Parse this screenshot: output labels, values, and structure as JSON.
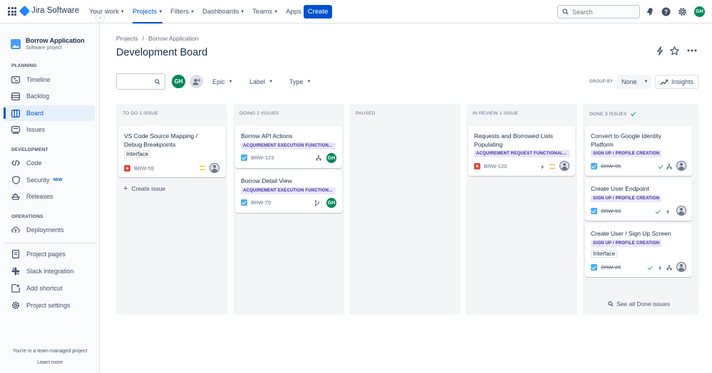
{
  "topnav": {
    "logo_text": "Jira Software",
    "items": [
      {
        "label": "Your work"
      },
      {
        "label": "Projects"
      },
      {
        "label": "Filters"
      },
      {
        "label": "Dashboards"
      },
      {
        "label": "Teams"
      },
      {
        "label": "Apps"
      }
    ],
    "create_label": "Create",
    "search_placeholder": "Search",
    "user_initials": "GH"
  },
  "sidebar": {
    "project_name": "Borrow Application",
    "project_type": "Software project",
    "sections": {
      "planning": "PLANNING",
      "development": "DEVELOPMENT",
      "operations": "OPERATIONS"
    },
    "planning_items": [
      {
        "label": "Timeline"
      },
      {
        "label": "Backlog"
      },
      {
        "label": "Board"
      },
      {
        "label": "Issues"
      }
    ],
    "development_items": [
      {
        "label": "Code"
      },
      {
        "label": "Security",
        "badge": "NEW"
      },
      {
        "label": "Releases"
      }
    ],
    "operations_items": [
      {
        "label": "Deployments"
      }
    ],
    "extra_items": [
      {
        "label": "Project pages"
      },
      {
        "label": "Slack integration"
      },
      {
        "label": "Add shortcut"
      },
      {
        "label": "Project settings"
      }
    ],
    "footer_text": "You're in a team-managed project",
    "learn_more": "Learn more"
  },
  "header": {
    "breadcrumb": [
      "Projects",
      "/",
      "Borrow Application"
    ],
    "title": "Development Board"
  },
  "filters": {
    "avatar_initials": "GH",
    "epic": "Epic",
    "label": "Label",
    "type": "Type",
    "group_by_label": "GROUP BY",
    "group_by_value": "None",
    "insights": "Insights"
  },
  "columns": [
    {
      "title": "TO DO 1 ISSUE",
      "cards": [
        {
          "title_lines": [
            "VS Code Source Mapping /",
            "Debug Breakpoints"
          ],
          "label": "Interface",
          "key": "BRW-59"
        }
      ],
      "create_issue": "Create issue"
    },
    {
      "title": "DOING 2 ISSUES",
      "cards": [
        {
          "title": "Borrow API Actions",
          "epic": "ACQUIREMENT EXECUTION FUNCTION...",
          "key": "BRW-123",
          "assignee": "GH"
        },
        {
          "title": "Borrow Detail View",
          "epic": "ACQUIREMENT EXECUTION FUNCTION...",
          "key": "BRW-79",
          "assignee": "GH"
        }
      ]
    },
    {
      "title": "PAUSED",
      "cards": []
    },
    {
      "title": "IN REVIEW 1 ISSUE",
      "cards": [
        {
          "title_lines": [
            "Requests and Borrowed Lists",
            "Populating"
          ],
          "epic": "ACQUIREMENT REQUEST FUNCTIONAL...",
          "key": "BRW-120"
        }
      ]
    },
    {
      "title": "DONE 3 ISSUES",
      "cards": [
        {
          "title_lines": [
            "Convert to Google Identity",
            "Platform"
          ],
          "epic": "SIGN UP / PROFILE CREATION",
          "key": "BRW-95"
        },
        {
          "title": "Create User Endpoint",
          "epic": "SIGN UP / PROFILE CREATION",
          "key": "BRW-93"
        },
        {
          "title": "Create User / Sign Up Screen",
          "epic": "SIGN UP / PROFILE CREATION",
          "label": "Interface",
          "key": "BRW-26"
        }
      ],
      "see_all": "See all Done issues"
    }
  ],
  "colors": {
    "primary": "#0052cc",
    "bug": "#e5493a",
    "task": "#4bade8",
    "epic_bg": "#eae6ff",
    "epic_text": "#403294",
    "avatar": "#00875a",
    "priority_medium": "#ffab00",
    "done_check": "#36b37e"
  }
}
